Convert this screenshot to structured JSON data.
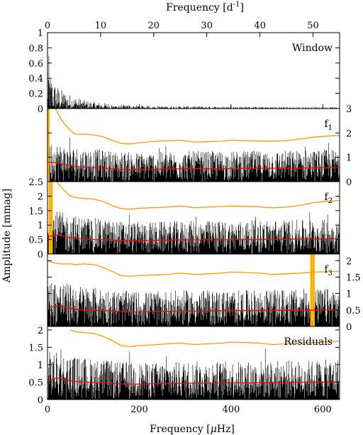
{
  "chart_data": {
    "type": "line",
    "top_axis": {
      "label_prefix": "Frequency [d",
      "label_sup": "-1",
      "label_suffix": "]",
      "range": [
        0,
        55
      ],
      "ticks": [
        0,
        10,
        20,
        30,
        40,
        50
      ],
      "tick_labels": [
        "0",
        "10",
        "20",
        "30",
        "40",
        "50"
      ]
    },
    "bottom_axis": {
      "label_prefix": "Frequency [",
      "label_mu": "μ",
      "label_suffix": "Hz]",
      "range": [
        0,
        636.6
      ],
      "ticks": [
        0,
        200,
        400,
        600
      ],
      "tick_labels": [
        "0",
        "200",
        "400",
        "600"
      ]
    },
    "ylabel": "Amplitude [mmag]",
    "colors": {
      "spectrum": "#000000",
      "signal_to_noise_threshold": "#ff9900",
      "noise_level": "#ff0000",
      "extracted_frequency": "#ffb000"
    },
    "panels": [
      {
        "name": "Window",
        "label_main": "Window",
        "label_sub": "",
        "y_axis_side": "left",
        "ylim": [
          0,
          1.0
        ],
        "yticks": [
          0,
          0.2,
          0.4,
          0.6,
          0.8,
          1
        ],
        "ytick_labels": [
          "0",
          "0.2",
          "0.4",
          "0.6",
          "0.8",
          "1"
        ],
        "spectrum_envelope": {
          "freq_uHz": [
            0,
            5,
            12,
            20,
            30,
            45,
            60,
            90,
            130,
            180,
            250,
            350,
            450,
            550,
            636
          ],
          "amp": [
            1.0,
            0.5,
            0.38,
            0.32,
            0.26,
            0.2,
            0.16,
            0.1,
            0.07,
            0.05,
            0.035,
            0.03,
            0.025,
            0.02,
            0.02
          ]
        },
        "extracted_peaks": []
      },
      {
        "name": "f1",
        "label_main": "f",
        "label_sub": "1",
        "y_axis_side": "right",
        "ylim": [
          0,
          3.0
        ],
        "yticks": [
          0,
          1,
          2,
          3
        ],
        "ytick_labels": [
          "0",
          "1",
          "2",
          "3"
        ],
        "threshold_curve": {
          "freq_uHz": [
            0,
            10,
            20,
            30,
            40,
            50,
            60,
            80,
            100,
            120,
            140,
            160,
            180,
            200,
            230,
            260,
            290,
            320,
            350,
            380,
            400,
            430,
            460,
            490,
            520,
            550,
            580,
            610,
            636
          ],
          "amp": [
            3.6,
            3.3,
            2.9,
            2.55,
            2.3,
            2.1,
            1.95,
            1.95,
            1.92,
            1.85,
            1.7,
            1.57,
            1.55,
            1.6,
            1.65,
            1.68,
            1.7,
            1.62,
            1.64,
            1.66,
            1.7,
            1.68,
            1.67,
            1.67,
            1.68,
            1.75,
            1.83,
            1.87,
            1.9
          ]
        },
        "noise_curve": {
          "freq_uHz": [
            0,
            20,
            40,
            60,
            80,
            100,
            130,
            160,
            200,
            250,
            300,
            350,
            400,
            450,
            500,
            550,
            600,
            636
          ],
          "amp": [
            0.8,
            0.78,
            0.7,
            0.62,
            0.6,
            0.58,
            0.55,
            0.5,
            0.5,
            0.52,
            0.53,
            0.53,
            0.54,
            0.55,
            0.55,
            0.56,
            0.57,
            0.58
          ]
        },
        "noise_envelope": {
          "freq_uHz": [
            0,
            20,
            50,
            100,
            150,
            200,
            300,
            400,
            500,
            600,
            636
          ],
          "amp": [
            1.7,
            1.6,
            1.45,
            1.35,
            1.25,
            1.2,
            1.25,
            1.25,
            1.28,
            1.32,
            1.35
          ]
        },
        "extracted_peaks": [
          {
            "freq_uHz": 2,
            "amp": 3.0
          }
        ]
      },
      {
        "name": "f2",
        "label_main": "f",
        "label_sub": "2",
        "y_axis_side": "left",
        "ylim": [
          0,
          2.5
        ],
        "yticks": [
          0,
          0.5,
          1,
          1.5,
          2,
          2.5
        ],
        "ytick_labels": [
          "0",
          "0.5",
          "1",
          "1.5",
          "2",
          "2.5"
        ],
        "threshold_curve": {
          "freq_uHz": [
            0,
            10,
            20,
            30,
            40,
            50,
            60,
            80,
            100,
            120,
            140,
            160,
            180,
            200,
            230,
            260,
            290,
            320,
            350,
            380,
            400,
            430,
            460,
            490,
            520,
            550,
            580,
            610,
            636
          ],
          "amp": [
            3.0,
            2.75,
            2.5,
            2.3,
            2.15,
            2.0,
            1.95,
            1.92,
            1.9,
            1.82,
            1.68,
            1.57,
            1.55,
            1.58,
            1.6,
            1.62,
            1.66,
            1.6,
            1.62,
            1.64,
            1.66,
            1.65,
            1.63,
            1.6,
            1.62,
            1.68,
            1.78,
            1.82,
            1.85
          ]
        },
        "noise_curve": {
          "freq_uHz": [
            0,
            20,
            40,
            60,
            80,
            100,
            130,
            160,
            200,
            250,
            300,
            350,
            400,
            450,
            500,
            550,
            600,
            636
          ],
          "amp": [
            0.6,
            0.66,
            0.6,
            0.55,
            0.52,
            0.5,
            0.5,
            0.47,
            0.46,
            0.48,
            0.49,
            0.49,
            0.5,
            0.5,
            0.51,
            0.52,
            0.52,
            0.53
          ]
        },
        "noise_envelope": {
          "freq_uHz": [
            0,
            20,
            50,
            100,
            150,
            200,
            300,
            400,
            500,
            600,
            636
          ],
          "amp": [
            1.6,
            1.5,
            1.35,
            1.25,
            1.15,
            1.1,
            1.15,
            1.15,
            1.18,
            1.2,
            1.22
          ]
        },
        "extracted_peaks": [
          {
            "freq_uHz": 5,
            "amp": 2.5
          },
          {
            "freq_uHz": 9,
            "amp": 2.5
          }
        ]
      },
      {
        "name": "f3",
        "label_main": "f",
        "label_sub": "3",
        "y_axis_side": "right",
        "ylim": [
          0,
          2.2
        ],
        "yticks": [
          0,
          0.5,
          1,
          1.5,
          2
        ],
        "ytick_labels": [
          "0",
          "0.5",
          "1",
          "1.5",
          "2"
        ],
        "threshold_curve": {
          "freq_uHz": [
            0,
            10,
            20,
            30,
            40,
            50,
            60,
            80,
            100,
            120,
            140,
            160,
            180,
            200,
            230,
            260,
            290,
            320,
            350,
            380,
            400,
            430,
            460,
            490,
            520,
            550,
            580,
            610,
            636
          ],
          "amp": [
            2.0,
            1.95,
            1.92,
            1.9,
            1.9,
            1.9,
            1.88,
            1.9,
            1.88,
            1.8,
            1.68,
            1.55,
            1.52,
            1.55,
            1.56,
            1.58,
            1.62,
            1.58,
            1.6,
            1.62,
            1.65,
            1.64,
            1.62,
            1.58,
            1.6,
            1.62,
            1.65,
            1.66,
            1.68
          ]
        },
        "noise_curve": {
          "freq_uHz": [
            0,
            20,
            40,
            60,
            80,
            100,
            130,
            160,
            200,
            250,
            300,
            350,
            400,
            450,
            500,
            550,
            600,
            636
          ],
          "amp": [
            0.55,
            0.62,
            0.58,
            0.52,
            0.5,
            0.49,
            0.48,
            0.45,
            0.44,
            0.46,
            0.47,
            0.47,
            0.48,
            0.48,
            0.49,
            0.5,
            0.5,
            0.51
          ]
        },
        "noise_envelope": {
          "freq_uHz": [
            0,
            20,
            50,
            100,
            150,
            200,
            300,
            400,
            500,
            600,
            636
          ],
          "amp": [
            1.45,
            1.4,
            1.3,
            1.2,
            1.1,
            1.05,
            1.1,
            1.1,
            1.12,
            1.15,
            1.18
          ]
        },
        "extracted_peaks": [
          {
            "freq_uHz": 575,
            "amp": 2.2
          },
          {
            "freq_uHz": 580,
            "amp": 2.2
          }
        ]
      },
      {
        "name": "Residuals",
        "label_main": "Residuals",
        "label_sub": "",
        "y_axis_side": "left",
        "ylim": [
          0,
          2.1
        ],
        "yticks": [
          0,
          0.5,
          1,
          1.5,
          2
        ],
        "ytick_labels": [
          "0",
          "0.5",
          "1",
          "1.5",
          "2"
        ],
        "threshold_curve": {
          "freq_uHz": [
            50,
            60,
            80,
            100,
            120,
            140,
            160,
            180,
            200,
            230,
            260,
            290,
            320,
            350,
            380,
            400,
            430,
            460,
            490,
            520,
            550,
            580,
            610,
            636
          ],
          "amp": [
            2.0,
            1.95,
            1.92,
            1.9,
            1.82,
            1.7,
            1.55,
            1.52,
            1.55,
            1.57,
            1.6,
            1.62,
            1.58,
            1.6,
            1.62,
            1.65,
            1.64,
            1.62,
            1.58,
            1.6,
            1.62,
            1.64,
            1.66,
            1.68
          ]
        },
        "noise_curve": {
          "freq_uHz": [
            0,
            20,
            40,
            60,
            80,
            100,
            130,
            160,
            200,
            250,
            300,
            350,
            400,
            450,
            500,
            550,
            600,
            636
          ],
          "amp": [
            0.55,
            0.62,
            0.57,
            0.52,
            0.5,
            0.49,
            0.48,
            0.45,
            0.44,
            0.46,
            0.47,
            0.47,
            0.48,
            0.48,
            0.49,
            0.5,
            0.5,
            0.51
          ]
        },
        "noise_envelope": {
          "freq_uHz": [
            0,
            20,
            50,
            100,
            150,
            200,
            300,
            400,
            500,
            600,
            636
          ],
          "amp": [
            1.4,
            1.35,
            1.25,
            1.18,
            1.1,
            1.05,
            1.1,
            1.1,
            1.12,
            1.15,
            1.18
          ]
        },
        "extracted_peaks": []
      }
    ]
  }
}
